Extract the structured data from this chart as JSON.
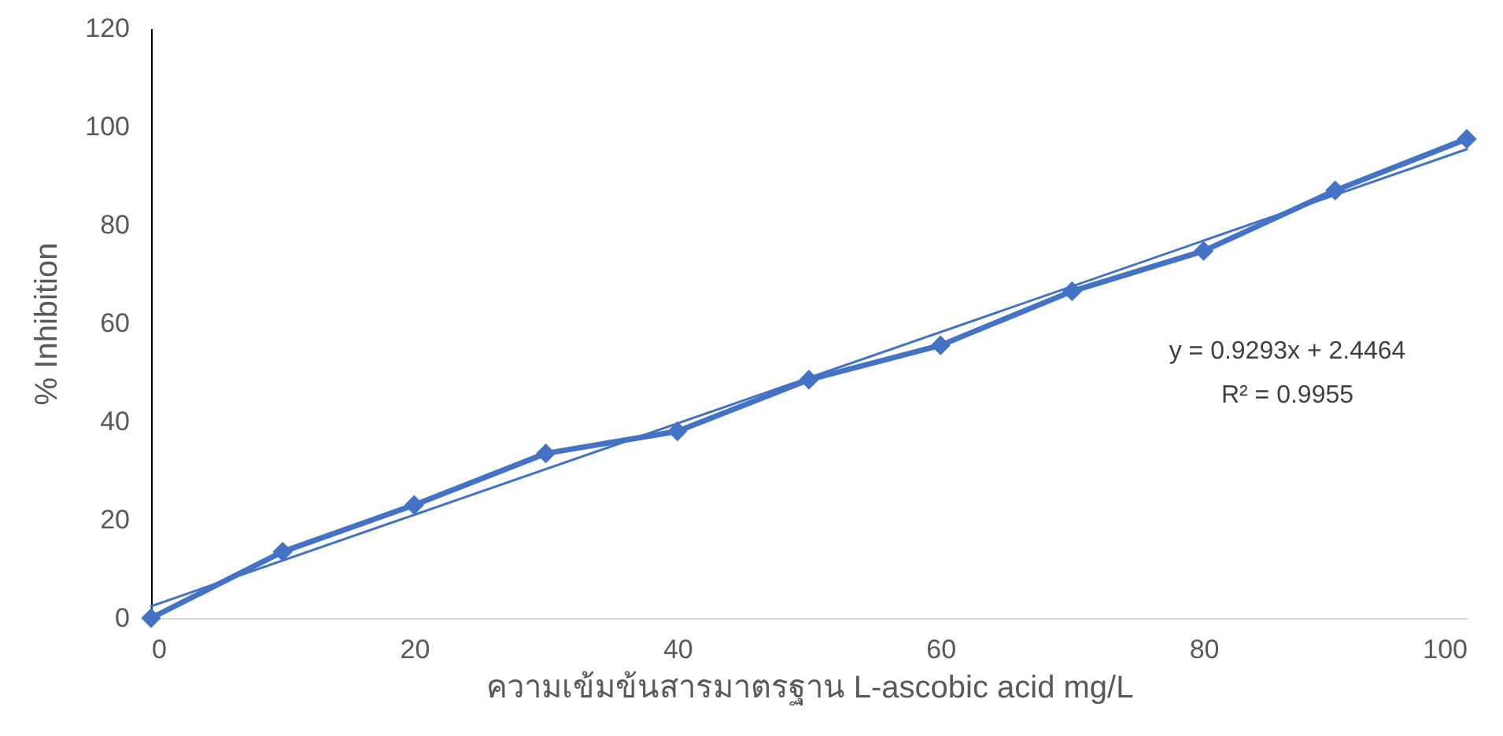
{
  "chart_data": {
    "type": "line",
    "xlabel": "ความเข้มข้นสารมาตรฐาน L-ascobic acid mg/L",
    "ylabel": "% Inhibition",
    "xlim": [
      0,
      100
    ],
    "xticks": [
      0,
      20,
      40,
      60,
      80,
      100
    ],
    "ylim": [
      0,
      120
    ],
    "yticks": [
      0,
      20,
      40,
      60,
      80,
      100,
      120
    ],
    "grid": false,
    "series": [
      {
        "color": "#4472c4",
        "marker": "diamond",
        "x": [
          0,
          10,
          20,
          30,
          40,
          50,
          60,
          70,
          80,
          90,
          100
        ],
        "values": [
          0,
          13.5,
          23,
          33.5,
          38,
          48.5,
          55.5,
          66.5,
          74.7,
          87,
          97.5
        ]
      },
      {
        "color": "#4472c4",
        "marker": "none",
        "x": [
          0,
          100
        ],
        "values": [
          2.4,
          95.4
        ]
      }
    ],
    "annotations": [
      "y = 0.9293x + 2.4464",
      "R² = 0.9955"
    ]
  }
}
